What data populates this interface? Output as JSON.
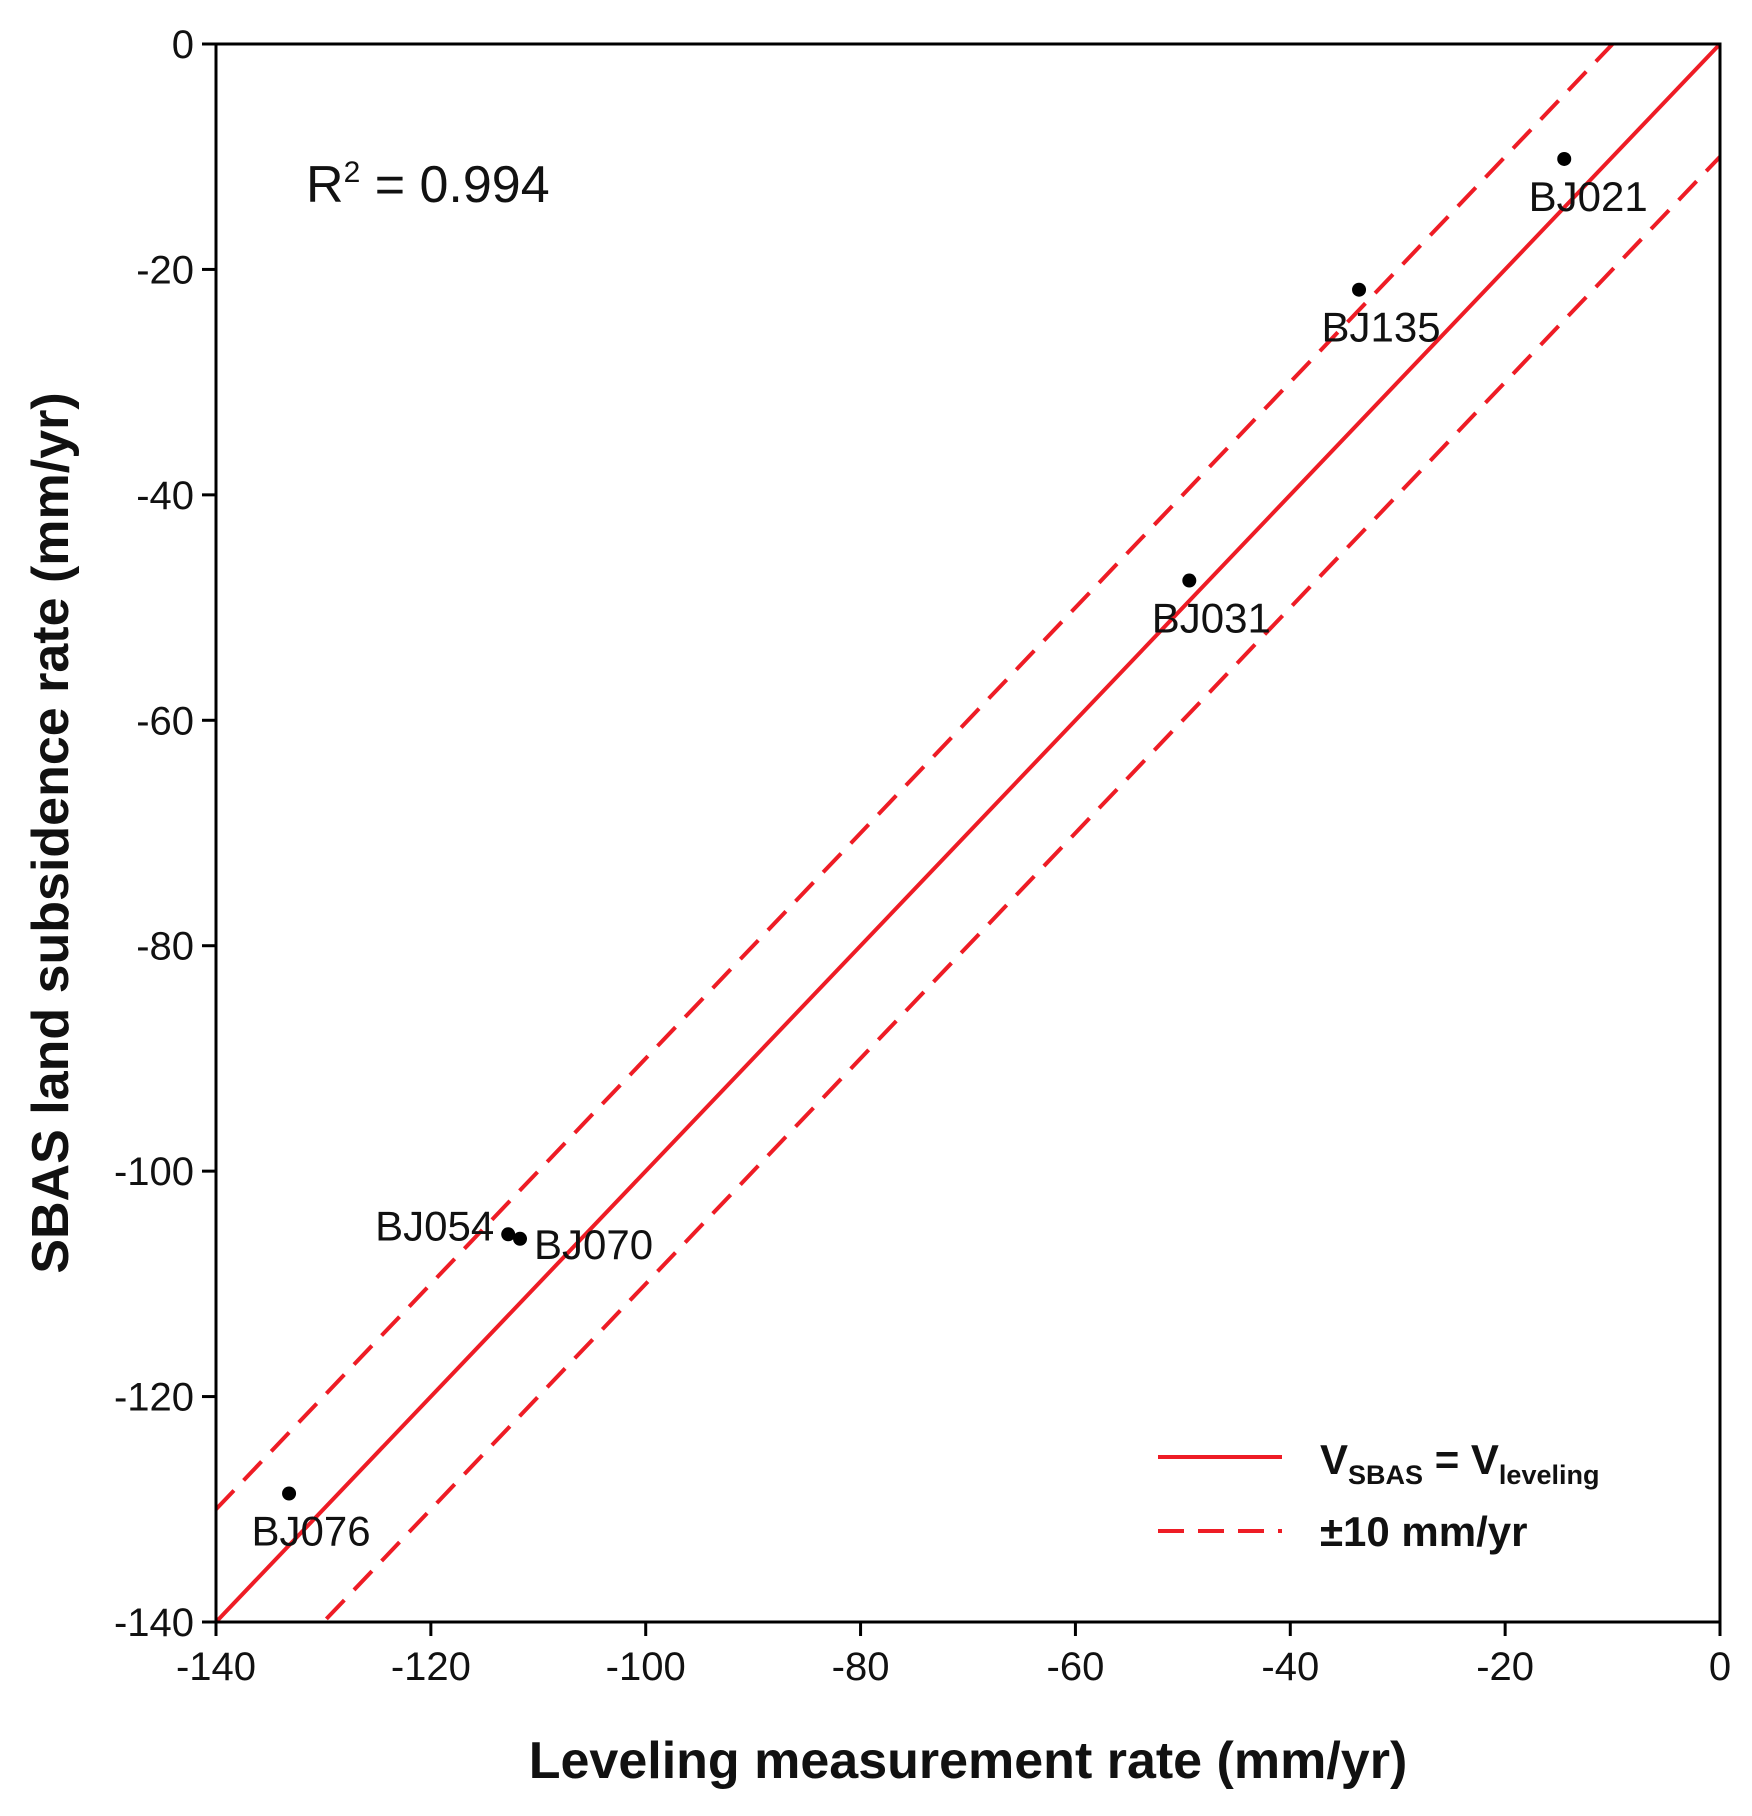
{
  "chart_data": {
    "type": "scatter",
    "xlabel": "Leveling measurement rate (mm/yr)",
    "ylabel": "SBAS land subsidence rate (mm/yr)",
    "xlim": [
      -140,
      0
    ],
    "ylim": [
      -140,
      0
    ],
    "xticks": [
      -140,
      -120,
      -100,
      -80,
      -60,
      -40,
      -20,
      0
    ],
    "yticks": [
      0,
      -20,
      -40,
      -60,
      -80,
      -100,
      -120,
      -140
    ],
    "annotation": {
      "r_symbol": "R",
      "exponent": "2",
      "rest": " = 0.994"
    },
    "points": [
      {
        "name": "BJ021",
        "x": -14.5,
        "y": -10.2
      },
      {
        "name": "BJ135",
        "x": -33.6,
        "y": -21.8
      },
      {
        "name": "BJ031",
        "x": -49.4,
        "y": -47.6
      },
      {
        "name": "BJ054",
        "x": -112.8,
        "y": -105.6
      },
      {
        "name": "BJ070",
        "x": -111.7,
        "y": -106.0
      },
      {
        "name": "BJ076",
        "x": -133.2,
        "y": -128.6
      }
    ],
    "lines": [
      {
        "name": "V_SBAS = V_leveling",
        "style": "solid",
        "offset": 0
      },
      {
        "name": "+10 mm/yr",
        "style": "dashed",
        "offset": 10
      },
      {
        "name": "-10 mm/yr",
        "style": "dashed",
        "offset": -10
      }
    ],
    "line_color": "#ee1c25",
    "point_color": "#000000",
    "legend": {
      "position": "bottom-right",
      "items": [
        {
          "style": "solid",
          "main": "V",
          "sub1": "SBAS",
          "mid": " = V",
          "sub2": "leveling"
        },
        {
          "style": "dashed",
          "label": "±10 mm/yr"
        }
      ]
    }
  }
}
